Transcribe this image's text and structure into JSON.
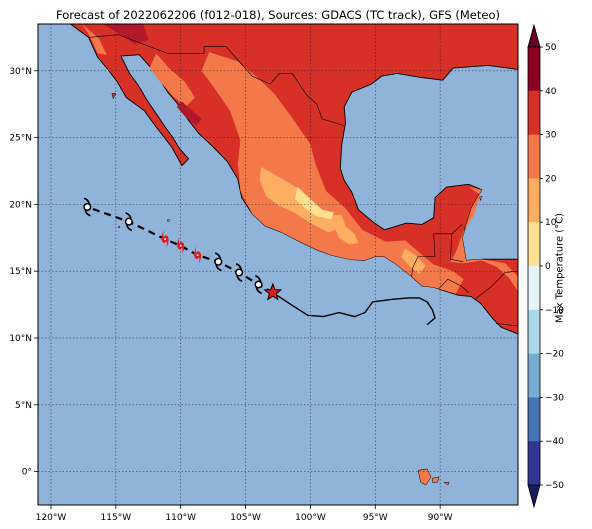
{
  "title": "Forecast of 2022062206 (f012-018), Sources: GDACS (TC track), GFS (Meteo)",
  "map": {
    "lon_range": [
      -121,
      -84
    ],
    "lat_range": [
      -2.5,
      33.5
    ],
    "lon_ticks": [
      {
        "value": -120,
        "label": "120°W"
      },
      {
        "value": -115,
        "label": "115°W"
      },
      {
        "value": -110,
        "label": "110°W"
      },
      {
        "value": -105,
        "label": "105°W"
      },
      {
        "value": -100,
        "label": "100°W"
      },
      {
        "value": -95,
        "label": "95°W"
      },
      {
        "value": -90,
        "label": "90°W"
      }
    ],
    "lat_ticks": [
      {
        "value": 30,
        "label": "30°N"
      },
      {
        "value": 25,
        "label": "25°N"
      },
      {
        "value": 20,
        "label": "20°N"
      },
      {
        "value": 15,
        "label": "15°N"
      },
      {
        "value": 10,
        "label": "10°N"
      },
      {
        "value": 5,
        "label": "5°N"
      },
      {
        "value": 0,
        "label": "0°"
      }
    ],
    "gridlines": true,
    "colors": {
      "ocean": "#8fb3d9",
      "t20_30": "#f4794a",
      "t30_40": "#d73027",
      "t40_50": "#b2182b",
      "t10_20": "#fdae61",
      "t0_10": "#fee090",
      "track_line": "#000000",
      "forecast_icon": "#e31a1c",
      "star": "#e31a1c"
    }
  },
  "storm": {
    "past_track": [
      [
        -102.9,
        13.4
      ],
      [
        -101.5,
        12.5
      ],
      [
        -100.2,
        11.7
      ],
      [
        -99.0,
        11.6
      ],
      [
        -97.8,
        11.9
      ],
      [
        -96.6,
        11.6
      ],
      [
        -95.8,
        11.9
      ],
      [
        -95.2,
        12.7
      ],
      [
        -93.6,
        12.9
      ],
      [
        -92.4,
        13.0
      ],
      [
        -91.6,
        13.0
      ],
      [
        -91.0,
        12.7
      ],
      [
        -90.6,
        12.1
      ],
      [
        -90.4,
        11.5
      ],
      [
        -91.0,
        11.0
      ]
    ],
    "current_position": [
      -102.9,
      13.4
    ],
    "forecast_track": [
      [
        -102.9,
        13.4
      ],
      [
        -104.0,
        14.0
      ],
      [
        -105.5,
        14.9
      ],
      [
        -107.1,
        15.7
      ],
      [
        -108.7,
        16.2
      ],
      [
        -110.0,
        16.9
      ],
      [
        -111.2,
        17.4
      ],
      [
        -114.0,
        18.7
      ],
      [
        -117.2,
        19.8
      ]
    ],
    "forecast_points": [
      {
        "pos": [
          -104.0,
          14.0
        ],
        "category": "tropical-storm"
      },
      {
        "pos": [
          -105.5,
          14.9
        ],
        "category": "tropical-storm"
      },
      {
        "pos": [
          -107.1,
          15.7
        ],
        "category": "tropical-storm"
      },
      {
        "pos": [
          -108.7,
          16.2
        ],
        "category": "hurricane"
      },
      {
        "pos": [
          -110.0,
          16.9
        ],
        "category": "hurricane"
      },
      {
        "pos": [
          -111.2,
          17.4
        ],
        "category": "hurricane"
      },
      {
        "pos": [
          -114.0,
          18.7
        ],
        "category": "tropical-storm"
      },
      {
        "pos": [
          -117.2,
          19.8
        ],
        "category": "tropical-storm"
      }
    ]
  },
  "colorbar": {
    "label": "Max Temperature (°C)",
    "ticks": [
      "50",
      "40",
      "30",
      "20",
      "10",
      "0",
      "−10",
      "−20",
      "−30",
      "−40",
      "−50"
    ],
    "levels": [
      {
        "from": 50,
        "to": 40,
        "color": "#8e0023"
      },
      {
        "from": 40,
        "to": 30,
        "color": "#d73027"
      },
      {
        "from": 30,
        "to": 20,
        "color": "#f4794a"
      },
      {
        "from": 20,
        "to": 10,
        "color": "#fdae61"
      },
      {
        "from": 10,
        "to": 0,
        "color": "#fee090"
      },
      {
        "from": 0,
        "to": -10,
        "color": "#e6f4f8"
      },
      {
        "from": -10,
        "to": -20,
        "color": "#abd9e9"
      },
      {
        "from": -20,
        "to": -30,
        "color": "#74add1"
      },
      {
        "from": -30,
        "to": -40,
        "color": "#4575b4"
      },
      {
        "from": -40,
        "to": -50,
        "color": "#313695"
      }
    ],
    "extend_top_color": "#67001f",
    "extend_bottom_color": "#1a1a5e"
  }
}
